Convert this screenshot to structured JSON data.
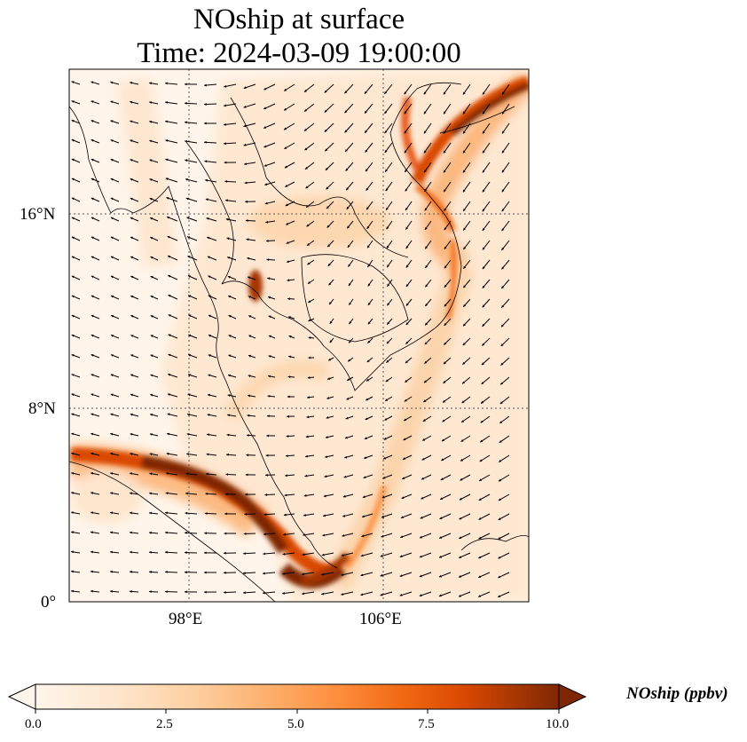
{
  "title": {
    "line1": "NOship at surface",
    "line2": "Time: 2024-03-09 19:00:00"
  },
  "map": {
    "lon_range": [
      93,
      112
    ],
    "lat_range": [
      0,
      22
    ],
    "lon_ticks": [
      "98°E",
      "106°E"
    ],
    "lat_ticks": [
      "16°N",
      "8°N",
      "0°"
    ],
    "gridlines": "dotted",
    "wind_vectors": true
  },
  "colorbar": {
    "label": "NOship (ppbv)",
    "ticks": [
      "0.0",
      "2.5",
      "5.0",
      "7.5",
      "10.0"
    ],
    "min": 0,
    "max": 10,
    "extend": "both",
    "colors": [
      "#fff5eb",
      "#fee6ce",
      "#fdd0a2",
      "#fdae6b",
      "#fd8d3c",
      "#f16913",
      "#d94801",
      "#a63603",
      "#7f2704"
    ]
  }
}
